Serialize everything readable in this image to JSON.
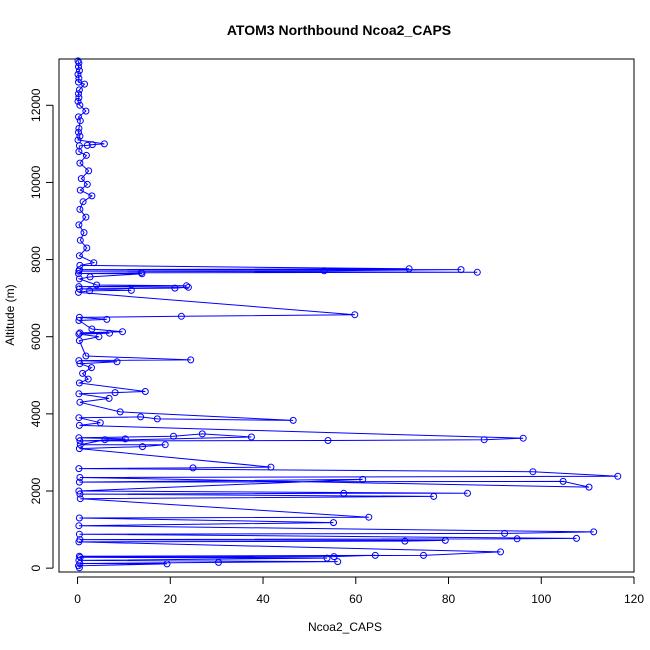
{
  "chart_data": {
    "type": "line",
    "title": "ATOM3 Northbound Ncoa2_CAPS",
    "xlabel": "Ncoa2_CAPS",
    "ylabel": "Altitude (m)",
    "xlim": [
      -4,
      120
    ],
    "ylim": [
      -100,
      13200
    ],
    "xticks": [
      0,
      20,
      40,
      60,
      80,
      100,
      120
    ],
    "yticks": [
      0,
      2000,
      4000,
      6000,
      8000,
      10000,
      12000
    ],
    "grid": false,
    "legend": "none",
    "marker": "open-circle",
    "series": [
      {
        "color": "#0000ff",
        "points": [
          [
            0.1,
            13150
          ],
          [
            0.3,
            13100
          ],
          [
            0.2,
            13000
          ],
          [
            0.4,
            12900
          ],
          [
            0.1,
            12800
          ],
          [
            0.3,
            12700
          ],
          [
            0.2,
            12600
          ],
          [
            1.5,
            12550
          ],
          [
            0.4,
            12400
          ],
          [
            0.2,
            12300
          ],
          [
            0.3,
            12200
          ],
          [
            0.1,
            12100
          ],
          [
            0.5,
            12000
          ],
          [
            1.8,
            11850
          ],
          [
            0.2,
            11700
          ],
          [
            0.6,
            11600
          ],
          [
            0.3,
            11400
          ],
          [
            0.2,
            11300
          ],
          [
            0.5,
            11200
          ],
          [
            0.1,
            11100
          ],
          [
            5.8,
            11000
          ],
          [
            3.2,
            10980
          ],
          [
            2.1,
            10960
          ],
          [
            0.4,
            10950
          ],
          [
            0.3,
            10800
          ],
          [
            1.9,
            10700
          ],
          [
            0.5,
            10500
          ],
          [
            2.4,
            10300
          ],
          [
            0.8,
            10100
          ],
          [
            2.1,
            9950
          ],
          [
            0.6,
            9800
          ],
          [
            3.1,
            9650
          ],
          [
            1.2,
            9500
          ],
          [
            0.5,
            9300
          ],
          [
            1.8,
            9100
          ],
          [
            0.3,
            8900
          ],
          [
            1.4,
            8700
          ],
          [
            0.6,
            8500
          ],
          [
            2.0,
            8300
          ],
          [
            0.4,
            8100
          ],
          [
            3.5,
            7920
          ],
          [
            0.5,
            7850
          ],
          [
            71.5,
            7760
          ],
          [
            0.4,
            7740
          ],
          [
            82.7,
            7740
          ],
          [
            53.2,
            7710
          ],
          [
            0.3,
            7700
          ],
          [
            86.2,
            7670
          ],
          [
            13.7,
            7660
          ],
          [
            0.2,
            7640
          ],
          [
            13.9,
            7630
          ],
          [
            2.7,
            7550
          ],
          [
            0.4,
            7500
          ],
          [
            4.1,
            7340
          ],
          [
            23.5,
            7320
          ],
          [
            0.3,
            7300
          ],
          [
            23.9,
            7280
          ],
          [
            21.0,
            7260
          ],
          [
            0.4,
            7240
          ],
          [
            11.6,
            7200
          ],
          [
            2.6,
            7190
          ],
          [
            0.2,
            7150
          ],
          [
            59.8,
            6570
          ],
          [
            22.4,
            6530
          ],
          [
            0.4,
            6500
          ],
          [
            6.3,
            6450
          ],
          [
            0.3,
            6420
          ],
          [
            3.1,
            6200
          ],
          [
            9.7,
            6130
          ],
          [
            0.5,
            6100
          ],
          [
            6.9,
            6090
          ],
          [
            0.3,
            6070
          ],
          [
            4.6,
            6000
          ],
          [
            0.4,
            5900
          ],
          [
            1.8,
            5500
          ],
          [
            24.4,
            5400
          ],
          [
            0.3,
            5380
          ],
          [
            8.5,
            5350
          ],
          [
            0.5,
            5300
          ],
          [
            3.0,
            5200
          ],
          [
            1.1,
            5050
          ],
          [
            2.3,
            4900
          ],
          [
            0.4,
            4800
          ],
          [
            14.6,
            4580
          ],
          [
            8.1,
            4550
          ],
          [
            0.3,
            4520
          ],
          [
            6.8,
            4400
          ],
          [
            0.5,
            4300
          ],
          [
            9.2,
            4050
          ],
          [
            46.5,
            3830
          ],
          [
            17.2,
            3870
          ],
          [
            13.6,
            3920
          ],
          [
            0.3,
            3900
          ],
          [
            4.9,
            3770
          ],
          [
            0.4,
            3700
          ],
          [
            96.1,
            3370
          ],
          [
            87.7,
            3330
          ],
          [
            54.0,
            3310
          ],
          [
            0.5,
            3300
          ],
          [
            37.5,
            3400
          ],
          [
            26.9,
            3480
          ],
          [
            20.7,
            3420
          ],
          [
            0.3,
            3380
          ],
          [
            10.3,
            3350
          ],
          [
            5.9,
            3330
          ],
          [
            0.6,
            3200
          ],
          [
            18.9,
            3200
          ],
          [
            14.0,
            3150
          ],
          [
            0.4,
            3100
          ],
          [
            41.7,
            2620
          ],
          [
            24.9,
            2600
          ],
          [
            0.3,
            2580
          ],
          [
            98.2,
            2500
          ],
          [
            116.5,
            2380
          ],
          [
            0.5,
            2350
          ],
          [
            110.3,
            2100
          ],
          [
            104.7,
            2250
          ],
          [
            0.4,
            2230
          ],
          [
            61.5,
            2300
          ],
          [
            0.3,
            2000
          ],
          [
            84.1,
            1940
          ],
          [
            57.4,
            1940
          ],
          [
            0.5,
            1920
          ],
          [
            76.8,
            1860
          ],
          [
            0.6,
            1800
          ],
          [
            62.8,
            1320
          ],
          [
            0.4,
            1300
          ],
          [
            55.2,
            1180
          ],
          [
            0.3,
            1100
          ],
          [
            111.3,
            940
          ],
          [
            92.1,
            900
          ],
          [
            0.4,
            880
          ],
          [
            107.6,
            770
          ],
          [
            94.8,
            760
          ],
          [
            0.5,
            740
          ],
          [
            79.3,
            720
          ],
          [
            70.6,
            700
          ],
          [
            0.3,
            680
          ],
          [
            91.2,
            420
          ],
          [
            74.6,
            330
          ],
          [
            0.4,
            310
          ],
          [
            64.2,
            330
          ],
          [
            55.3,
            300
          ],
          [
            0.6,
            280
          ],
          [
            53.8,
            260
          ],
          [
            0.3,
            200
          ],
          [
            56.1,
            170
          ],
          [
            30.4,
            150
          ],
          [
            0.5,
            120
          ],
          [
            19.3,
            110
          ],
          [
            0.2,
            60
          ],
          [
            0.4,
            10
          ]
        ]
      }
    ]
  }
}
